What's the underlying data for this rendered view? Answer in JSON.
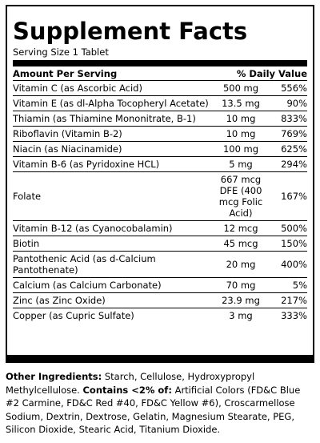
{
  "label": {
    "title": "Supplement Facts",
    "serving_size": "Serving Size 1 Tablet",
    "header_left": "Amount Per Serving",
    "header_right": "% Daily Value",
    "rows": [
      {
        "name": "Vitamin C (as Ascorbic Acid)",
        "amount": "500 mg",
        "dv": "556%"
      },
      {
        "name": "Vitamin E (as dl-Alpha Tocopheryl Acetate)",
        "amount": "13.5 mg",
        "dv": "90%"
      },
      {
        "name": "Thiamin (as Thiamine Mononitrate, B-1)",
        "amount": "10 mg",
        "dv": "833%"
      },
      {
        "name": "Riboflavin (Vitamin B-2)",
        "amount": "10 mg",
        "dv": "769%"
      },
      {
        "name": "Niacin (as Niacinamide)",
        "amount": "100 mg",
        "dv": "625%"
      },
      {
        "name": "Vitamin B-6 (as Pyridoxine HCL)",
        "amount": "5 mg",
        "dv": "294%"
      },
      {
        "name": "Folate",
        "amount": "667 mcg DFE (400 mcg Folic Acid)",
        "dv": "167%"
      },
      {
        "name": "Vitamin B-12 (as Cyanocobalamin)",
        "amount": "12 mcg",
        "dv": "500%"
      },
      {
        "name": "Biotin",
        "amount": "45 mcg",
        "dv": "150%"
      },
      {
        "name": "Pantothenic Acid (as d-Calcium Pantothenate)",
        "amount": "20 mg",
        "dv": "400%"
      },
      {
        "name": "Calcium (as Calcium Carbonate)",
        "amount": "70 mg",
        "dv": "5%"
      },
      {
        "name": "Zinc (as Zinc Oxide)",
        "amount": "23.9 mg",
        "dv": "217%"
      },
      {
        "name": "Copper (as Cupric Sulfate)",
        "amount": "3 mg",
        "dv": "333%"
      }
    ]
  },
  "ingredients": {
    "other_label": "Other Ingredients:",
    "other_text": " Starch, Cellulose, Hydroxypropyl Methylcellulose. ",
    "contains_label": "Contains <2% of:",
    "contains_text": " Artificial Colors (FD&C Blue #2 Carmine, FD&C Red #40, FD&C Yellow #6), Croscarmellose Sodium, Dextrin, Dextrose, Gelatin, Magnesium Stearate, PEG, Silicon Dioxide, Stearic Acid, Titanium Dioxide."
  }
}
